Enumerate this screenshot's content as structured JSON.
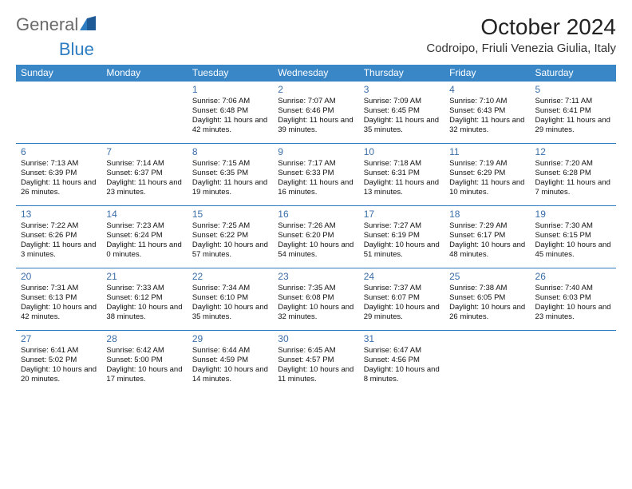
{
  "logo": {
    "part1": "General",
    "part2": "Blue"
  },
  "title": "October 2024",
  "location": "Codroipo, Friuli Venezia Giulia, Italy",
  "colors": {
    "header_bg": "#3a87c8",
    "header_text": "#ffffff",
    "daynum": "#3a6ea8",
    "border": "#2e7cc2",
    "body_text": "#111111",
    "logo_gray": "#6a6a6a",
    "logo_blue": "#2e7cc2"
  },
  "font": {
    "body_size_pt": 9.5,
    "header_size_pt": 12,
    "title_size_pt": 28,
    "subtitle_size_pt": 15
  },
  "days_of_week": [
    "Sunday",
    "Monday",
    "Tuesday",
    "Wednesday",
    "Thursday",
    "Friday",
    "Saturday"
  ],
  "weeks": [
    [
      {
        "n": "",
        "sr": "",
        "ss": "",
        "dl": ""
      },
      {
        "n": "",
        "sr": "",
        "ss": "",
        "dl": ""
      },
      {
        "n": "1",
        "sr": "Sunrise: 7:06 AM",
        "ss": "Sunset: 6:48 PM",
        "dl": "Daylight: 11 hours and 42 minutes."
      },
      {
        "n": "2",
        "sr": "Sunrise: 7:07 AM",
        "ss": "Sunset: 6:46 PM",
        "dl": "Daylight: 11 hours and 39 minutes."
      },
      {
        "n": "3",
        "sr": "Sunrise: 7:09 AM",
        "ss": "Sunset: 6:45 PM",
        "dl": "Daylight: 11 hours and 35 minutes."
      },
      {
        "n": "4",
        "sr": "Sunrise: 7:10 AM",
        "ss": "Sunset: 6:43 PM",
        "dl": "Daylight: 11 hours and 32 minutes."
      },
      {
        "n": "5",
        "sr": "Sunrise: 7:11 AM",
        "ss": "Sunset: 6:41 PM",
        "dl": "Daylight: 11 hours and 29 minutes."
      }
    ],
    [
      {
        "n": "6",
        "sr": "Sunrise: 7:13 AM",
        "ss": "Sunset: 6:39 PM",
        "dl": "Daylight: 11 hours and 26 minutes."
      },
      {
        "n": "7",
        "sr": "Sunrise: 7:14 AM",
        "ss": "Sunset: 6:37 PM",
        "dl": "Daylight: 11 hours and 23 minutes."
      },
      {
        "n": "8",
        "sr": "Sunrise: 7:15 AM",
        "ss": "Sunset: 6:35 PM",
        "dl": "Daylight: 11 hours and 19 minutes."
      },
      {
        "n": "9",
        "sr": "Sunrise: 7:17 AM",
        "ss": "Sunset: 6:33 PM",
        "dl": "Daylight: 11 hours and 16 minutes."
      },
      {
        "n": "10",
        "sr": "Sunrise: 7:18 AM",
        "ss": "Sunset: 6:31 PM",
        "dl": "Daylight: 11 hours and 13 minutes."
      },
      {
        "n": "11",
        "sr": "Sunrise: 7:19 AM",
        "ss": "Sunset: 6:29 PM",
        "dl": "Daylight: 11 hours and 10 minutes."
      },
      {
        "n": "12",
        "sr": "Sunrise: 7:20 AM",
        "ss": "Sunset: 6:28 PM",
        "dl": "Daylight: 11 hours and 7 minutes."
      }
    ],
    [
      {
        "n": "13",
        "sr": "Sunrise: 7:22 AM",
        "ss": "Sunset: 6:26 PM",
        "dl": "Daylight: 11 hours and 3 minutes."
      },
      {
        "n": "14",
        "sr": "Sunrise: 7:23 AM",
        "ss": "Sunset: 6:24 PM",
        "dl": "Daylight: 11 hours and 0 minutes."
      },
      {
        "n": "15",
        "sr": "Sunrise: 7:25 AM",
        "ss": "Sunset: 6:22 PM",
        "dl": "Daylight: 10 hours and 57 minutes."
      },
      {
        "n": "16",
        "sr": "Sunrise: 7:26 AM",
        "ss": "Sunset: 6:20 PM",
        "dl": "Daylight: 10 hours and 54 minutes."
      },
      {
        "n": "17",
        "sr": "Sunrise: 7:27 AM",
        "ss": "Sunset: 6:19 PM",
        "dl": "Daylight: 10 hours and 51 minutes."
      },
      {
        "n": "18",
        "sr": "Sunrise: 7:29 AM",
        "ss": "Sunset: 6:17 PM",
        "dl": "Daylight: 10 hours and 48 minutes."
      },
      {
        "n": "19",
        "sr": "Sunrise: 7:30 AM",
        "ss": "Sunset: 6:15 PM",
        "dl": "Daylight: 10 hours and 45 minutes."
      }
    ],
    [
      {
        "n": "20",
        "sr": "Sunrise: 7:31 AM",
        "ss": "Sunset: 6:13 PM",
        "dl": "Daylight: 10 hours and 42 minutes."
      },
      {
        "n": "21",
        "sr": "Sunrise: 7:33 AM",
        "ss": "Sunset: 6:12 PM",
        "dl": "Daylight: 10 hours and 38 minutes."
      },
      {
        "n": "22",
        "sr": "Sunrise: 7:34 AM",
        "ss": "Sunset: 6:10 PM",
        "dl": "Daylight: 10 hours and 35 minutes."
      },
      {
        "n": "23",
        "sr": "Sunrise: 7:35 AM",
        "ss": "Sunset: 6:08 PM",
        "dl": "Daylight: 10 hours and 32 minutes."
      },
      {
        "n": "24",
        "sr": "Sunrise: 7:37 AM",
        "ss": "Sunset: 6:07 PM",
        "dl": "Daylight: 10 hours and 29 minutes."
      },
      {
        "n": "25",
        "sr": "Sunrise: 7:38 AM",
        "ss": "Sunset: 6:05 PM",
        "dl": "Daylight: 10 hours and 26 minutes."
      },
      {
        "n": "26",
        "sr": "Sunrise: 7:40 AM",
        "ss": "Sunset: 6:03 PM",
        "dl": "Daylight: 10 hours and 23 minutes."
      }
    ],
    [
      {
        "n": "27",
        "sr": "Sunrise: 6:41 AM",
        "ss": "Sunset: 5:02 PM",
        "dl": "Daylight: 10 hours and 20 minutes."
      },
      {
        "n": "28",
        "sr": "Sunrise: 6:42 AM",
        "ss": "Sunset: 5:00 PM",
        "dl": "Daylight: 10 hours and 17 minutes."
      },
      {
        "n": "29",
        "sr": "Sunrise: 6:44 AM",
        "ss": "Sunset: 4:59 PM",
        "dl": "Daylight: 10 hours and 14 minutes."
      },
      {
        "n": "30",
        "sr": "Sunrise: 6:45 AM",
        "ss": "Sunset: 4:57 PM",
        "dl": "Daylight: 10 hours and 11 minutes."
      },
      {
        "n": "31",
        "sr": "Sunrise: 6:47 AM",
        "ss": "Sunset: 4:56 PM",
        "dl": "Daylight: 10 hours and 8 minutes."
      },
      {
        "n": "",
        "sr": "",
        "ss": "",
        "dl": ""
      },
      {
        "n": "",
        "sr": "",
        "ss": "",
        "dl": ""
      }
    ]
  ]
}
